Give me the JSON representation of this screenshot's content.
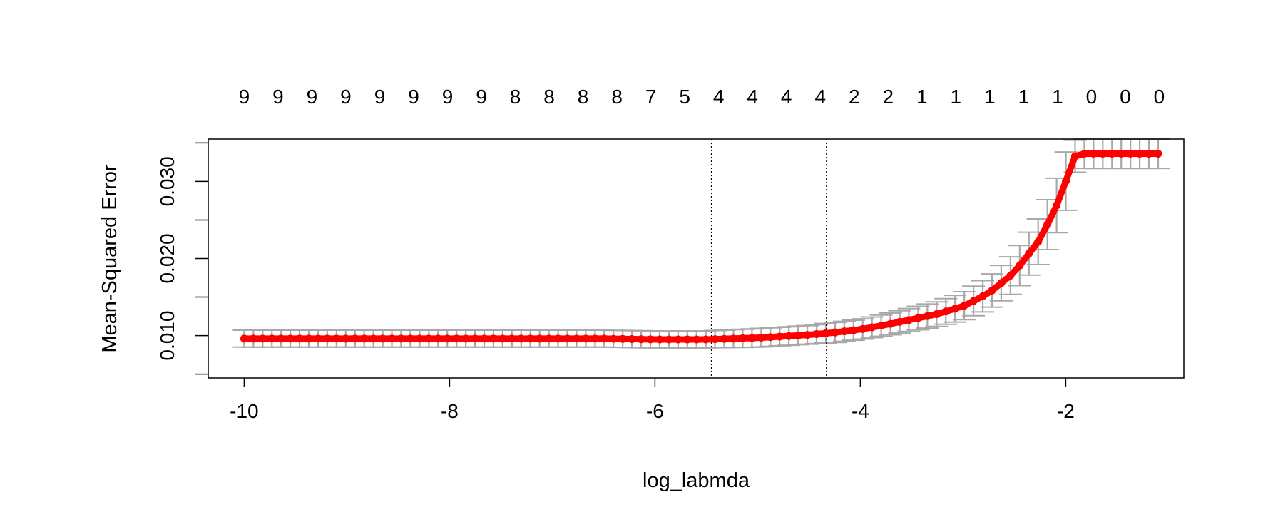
{
  "chart_data": {
    "type": "line",
    "title": "",
    "xlabel": "log_labmda",
    "ylabel": "Mean-Squared Error",
    "xlim": [
      -10.35,
      -0.85
    ],
    "ylim": [
      0.0045,
      0.0355
    ],
    "x_ticks": [
      -10,
      -8,
      -6,
      -4,
      -2
    ],
    "x_tick_labels": [
      "-10",
      "-8",
      "-6",
      "-4",
      "-2"
    ],
    "y_ticks": [
      0.005,
      0.01,
      0.015,
      0.02,
      0.025,
      0.03,
      0.035
    ],
    "y_tick_labels": [
      "",
      "0.010",
      "",
      "0.020",
      "",
      "0.030",
      ""
    ],
    "top_axis": {
      "positions": [
        -10.0,
        -9.67,
        -9.34,
        -9.01,
        -8.68,
        -8.35,
        -8.02,
        -7.69,
        -7.36,
        -7.03,
        -6.7,
        -6.37,
        -6.04,
        -5.71,
        -5.38,
        -5.05,
        -4.72,
        -4.39,
        -4.06,
        -3.73,
        -3.4,
        -3.07,
        -2.74,
        -2.41,
        -2.08,
        -1.75,
        -1.42,
        -1.09
      ],
      "labels": [
        "9",
        "9",
        "9",
        "9",
        "9",
        "9",
        "9",
        "9",
        "8",
        "8",
        "8",
        "8",
        "7",
        "5",
        "4",
        "4",
        "4",
        "4",
        "2",
        "2",
        "1",
        "1",
        "1",
        "1",
        "1",
        "0",
        "0",
        "0"
      ]
    },
    "vlines": [
      -5.45,
      -4.33
    ],
    "grid": false,
    "legend": "none",
    "colors": {
      "line": "#ff0000",
      "error_bars": "#a8a8a8",
      "axis": "#000000"
    },
    "series": [
      {
        "x": [
          -10.0,
          -9.5,
          -9.0,
          -8.5,
          -8.0,
          -7.5,
          -7.0,
          -6.5,
          -6.0,
          -5.5,
          -5.0,
          -4.75,
          -4.5,
          -4.25,
          -4.0,
          -3.75,
          -3.5,
          -3.25,
          -3.0,
          -2.75,
          -2.5,
          -2.25,
          -2.1,
          -2.0,
          -1.9,
          -1.5,
          -1.1
        ],
        "y": [
          0.0096,
          0.0096,
          0.0096,
          0.0096,
          0.0096,
          0.0096,
          0.0096,
          0.0096,
          0.0095,
          0.0095,
          0.0097,
          0.0099,
          0.0101,
          0.0104,
          0.0108,
          0.0114,
          0.0121,
          0.0128,
          0.0138,
          0.0155,
          0.0182,
          0.0225,
          0.0265,
          0.03,
          0.0336,
          0.0336,
          0.0336
        ],
        "lower": [
          0.0085,
          0.0085,
          0.0085,
          0.0085,
          0.0085,
          0.0085,
          0.0085,
          0.0085,
          0.0084,
          0.0084,
          0.0085,
          0.0087,
          0.0089,
          0.0091,
          0.0095,
          0.01,
          0.0106,
          0.0112,
          0.012,
          0.0134,
          0.0157,
          0.0195,
          0.023,
          0.0262,
          0.0317,
          0.0317,
          0.0317
        ],
        "upper": [
          0.0107,
          0.0107,
          0.0107,
          0.0107,
          0.0107,
          0.0107,
          0.0107,
          0.0107,
          0.0106,
          0.0106,
          0.0109,
          0.0111,
          0.0113,
          0.0117,
          0.0121,
          0.0128,
          0.0136,
          0.0144,
          0.0156,
          0.0176,
          0.0207,
          0.0255,
          0.03,
          0.0338,
          0.0355,
          0.0355,
          0.0355
        ]
      }
    ]
  }
}
